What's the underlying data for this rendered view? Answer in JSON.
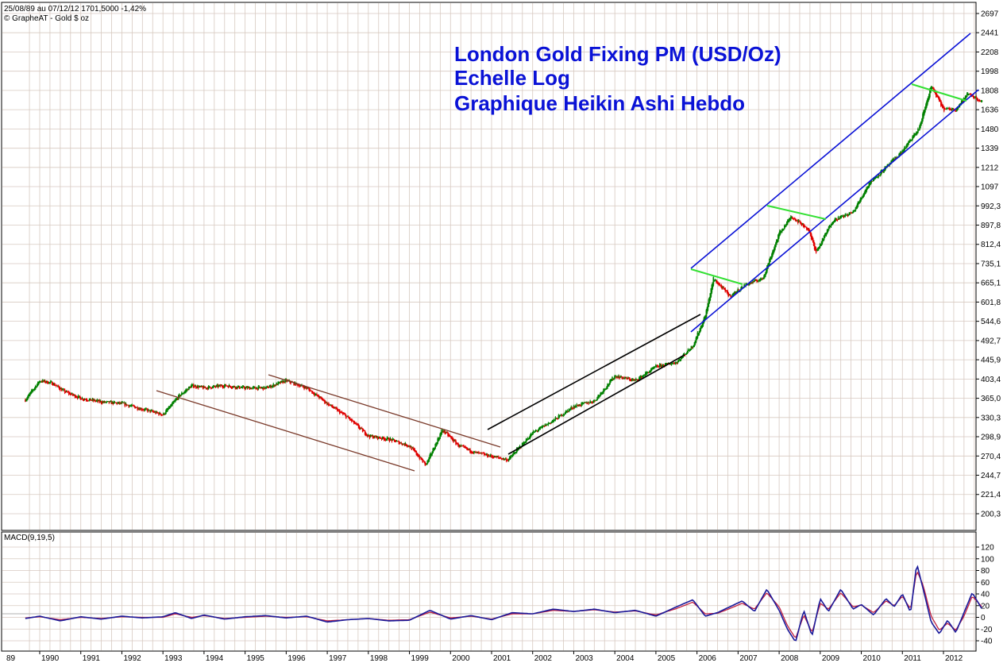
{
  "header": {
    "range_info": "25/08/89 au 07/12/12  1701,5000  -1,42%",
    "source": "© GrapheAT - Gold $ oz"
  },
  "title_lines": [
    "London Gold Fixing PM (USD/Oz)",
    "Echelle Log",
    "Graphique Heikin Ashi Hebdo"
  ],
  "macd_label": "MACD(9,19,5)",
  "colors": {
    "up_candle": "#008000",
    "down_candle": "#e00000",
    "grid": "#d7c9c0",
    "title": "#0a12d6",
    "channel_brown": "#7a3a2a",
    "channel_black": "#000000",
    "channel_blue": "#0a12d6",
    "channel_green": "#33e033",
    "macd_line": "#1a1a9a",
    "signal_line": "#c02040"
  },
  "chart_data": [
    {
      "type": "line",
      "description_kind": "heikin-ashi-candles",
      "scale": "log",
      "x_range": [
        1989.65,
        2012.94
      ],
      "ylim": [
        180,
        2697
      ],
      "y_tick_labels": [
        "2697",
        "2441",
        "2208",
        "1998",
        "1808",
        "1636",
        "1480",
        "1339",
        "1212",
        "1097",
        "992,3",
        "897,8",
        "812,4",
        "735,1",
        "665,1",
        "601,8",
        "544,6",
        "492,7",
        "445,9",
        "403,4",
        "365,0",
        "330,3",
        "298,9",
        "270,4",
        "244,7",
        "221,4",
        "200,3"
      ],
      "x_tick_labels": [
        "89",
        "1990",
        "1991",
        "1992",
        "1993",
        "1994",
        "1995",
        "1996",
        "1997",
        "1998",
        "1999",
        "2000",
        "2001",
        "2002",
        "2003",
        "2004",
        "2005",
        "2006",
        "2007",
        "2008",
        "2009",
        "2010",
        "2011",
        "2012"
      ],
      "series": [
        {
          "x": [
            1989.65,
            1990.0,
            1990.3,
            1990.6,
            1991.0,
            1991.5,
            1992.0,
            1992.5,
            1993.0,
            1993.4,
            1993.7,
            1994.0,
            1994.5,
            1995.0,
            1995.5,
            1996.0,
            1996.5,
            1997.0,
            1997.5,
            1998.0,
            1998.5,
            1999.0,
            1999.4,
            1999.8,
            2000.2,
            2000.6,
            2001.0,
            2001.4,
            2002.0,
            2002.5,
            2003.0,
            2003.5,
            2004.0,
            2004.5,
            2005.0,
            2005.5,
            2005.9,
            2006.2,
            2006.4,
            2006.8,
            2007.2,
            2007.6,
            2008.0,
            2008.3,
            2008.7,
            2008.9,
            2009.3,
            2009.8,
            2010.2,
            2010.6,
            2011.0,
            2011.4,
            2011.7,
            2012.0,
            2012.3,
            2012.6,
            2012.94
          ],
          "values": [
            362,
            400,
            395,
            378,
            365,
            358,
            355,
            345,
            335,
            370,
            390,
            385,
            390,
            385,
            385,
            400,
            385,
            355,
            330,
            300,
            295,
            285,
            258,
            310,
            285,
            275,
            270,
            265,
            305,
            325,
            350,
            360,
            410,
            400,
            430,
            440,
            480,
            560,
            680,
            620,
            660,
            680,
            860,
            940,
            880,
            780,
            920,
            960,
            1120,
            1210,
            1320,
            1480,
            1850,
            1640,
            1640,
            1780,
            1702
          ]
        }
      ]
    },
    {
      "type": "line",
      "title": "MACD(9,19,5)",
      "ylim": [
        -45,
        125
      ],
      "y_tick_labels": [
        "120",
        "100",
        "80",
        "60",
        "40",
        "20",
        "0",
        "-20",
        "-40"
      ],
      "series": [
        {
          "x": [
            1989.65,
            1990.0,
            1990.5,
            1991.0,
            1991.5,
            1992.0,
            1992.5,
            1993.0,
            1993.3,
            1993.7,
            1994.0,
            1994.5,
            1995.0,
            1995.5,
            1996.0,
            1996.5,
            1997.0,
            1997.5,
            1998.0,
            1998.5,
            1999.0,
            1999.5,
            2000.0,
            2000.5,
            2001.0,
            2001.5,
            2002.0,
            2002.5,
            2003.0,
            2003.5,
            2004.0,
            2004.5,
            2005.0,
            2005.5,
            2005.9,
            2006.2,
            2006.5,
            2006.8,
            2007.1,
            2007.4,
            2007.7,
            2008.0,
            2008.2,
            2008.4,
            2008.6,
            2008.8,
            2009.0,
            2009.2,
            2009.5,
            2009.8,
            2010.0,
            2010.3,
            2010.6,
            2010.8,
            2011.0,
            2011.2,
            2011.35,
            2011.5,
            2011.7,
            2011.9,
            2012.1,
            2012.3,
            2012.5,
            2012.7,
            2012.94
          ],
          "values": [
            -2,
            2,
            -6,
            1,
            -3,
            2,
            -1,
            1,
            8,
            -2,
            4,
            -3,
            1,
            3,
            -1,
            2,
            -8,
            -4,
            -2,
            -6,
            -5,
            12,
            -3,
            3,
            -4,
            8,
            6,
            14,
            10,
            14,
            8,
            12,
            2,
            18,
            30,
            2,
            8,
            18,
            28,
            10,
            48,
            12,
            -20,
            -42,
            12,
            -32,
            32,
            10,
            48,
            14,
            22,
            4,
            32,
            18,
            40,
            8,
            92,
            50,
            -8,
            -28,
            -5,
            -26,
            8,
            42,
            14
          ]
        },
        {
          "name": "signal",
          "x": [
            1989.65,
            1990.0,
            1990.5,
            1991.0,
            1991.5,
            1992.0,
            1992.5,
            1993.0,
            1993.3,
            1993.7,
            1994.0,
            1994.5,
            1995.0,
            1995.5,
            1996.0,
            1996.5,
            1997.0,
            1997.5,
            1998.0,
            1998.5,
            1999.0,
            1999.5,
            2000.0,
            2000.5,
            2001.0,
            2001.5,
            2002.0,
            2002.5,
            2003.0,
            2003.5,
            2004.0,
            2004.5,
            2005.0,
            2005.5,
            2005.9,
            2006.2,
            2006.5,
            2006.8,
            2007.1,
            2007.4,
            2007.7,
            2008.0,
            2008.2,
            2008.4,
            2008.6,
            2008.8,
            2009.0,
            2009.2,
            2009.5,
            2009.8,
            2010.0,
            2010.3,
            2010.6,
            2010.8,
            2011.0,
            2011.2,
            2011.35,
            2011.5,
            2011.7,
            2011.9,
            2012.1,
            2012.3,
            2012.5,
            2012.7,
            2012.94
          ],
          "values": [
            -1,
            1,
            -4,
            0,
            -2,
            1,
            0,
            0,
            6,
            0,
            3,
            -2,
            0,
            2,
            0,
            1,
            -6,
            -4,
            -2,
            -5,
            -4,
            9,
            -1,
            2,
            -3,
            6,
            6,
            12,
            10,
            13,
            9,
            11,
            4,
            15,
            26,
            6,
            7,
            15,
            24,
            14,
            42,
            18,
            -14,
            -36,
            4,
            -26,
            24,
            14,
            42,
            18,
            21,
            8,
            28,
            20,
            36,
            14,
            80,
            56,
            2,
            -22,
            -10,
            -22,
            2,
            36,
            18
          ]
        }
      ]
    }
  ]
}
